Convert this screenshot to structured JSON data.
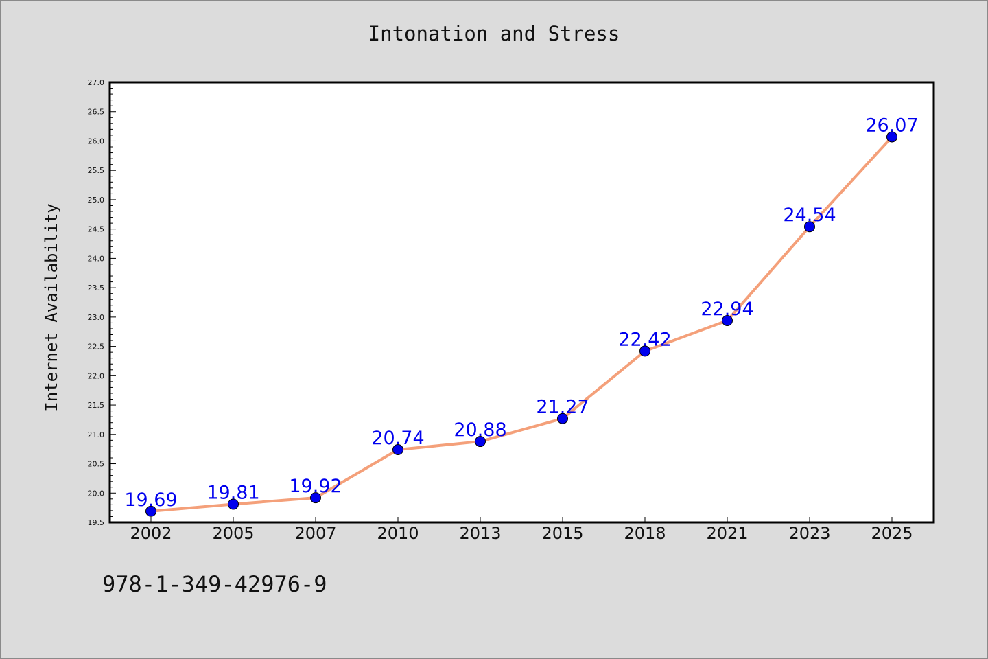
{
  "chart_data": {
    "type": "line",
    "title": "Intonation and Stress",
    "xlabel": "",
    "ylabel": "Internet Availability",
    "categories": [
      "2002",
      "2005",
      "2007",
      "2010",
      "2013",
      "2015",
      "2018",
      "2021",
      "2023",
      "2025"
    ],
    "series": [
      {
        "values": [
          19.69,
          19.81,
          19.92,
          20.74,
          20.88,
          21.27,
          22.42,
          22.94,
          24.54,
          26.07
        ],
        "data_labels": [
          "19.69",
          "19.81",
          "19.92",
          "20.74",
          "20.88",
          "21.27",
          "22.42",
          "22.94",
          "24.54",
          "26.07"
        ],
        "line_color": "#f4a07a",
        "marker_color": "#0000ee"
      }
    ],
    "ylim": [
      19.5,
      27.0
    ],
    "yticks": [
      "19.5",
      "20.0",
      "20.5",
      "21.0",
      "21.5",
      "22.0",
      "22.5",
      "23.0",
      "23.5",
      "24.0",
      "24.5",
      "25.0",
      "25.5",
      "26.0",
      "26.5",
      "27.0"
    ],
    "grid": false,
    "legend": "none",
    "colors": {
      "background": "#dcdcdc",
      "plot_background": "#ffffff",
      "label_color": "#0000ee"
    }
  },
  "footer": {
    "isbn": "978-1-349-42976-9"
  }
}
